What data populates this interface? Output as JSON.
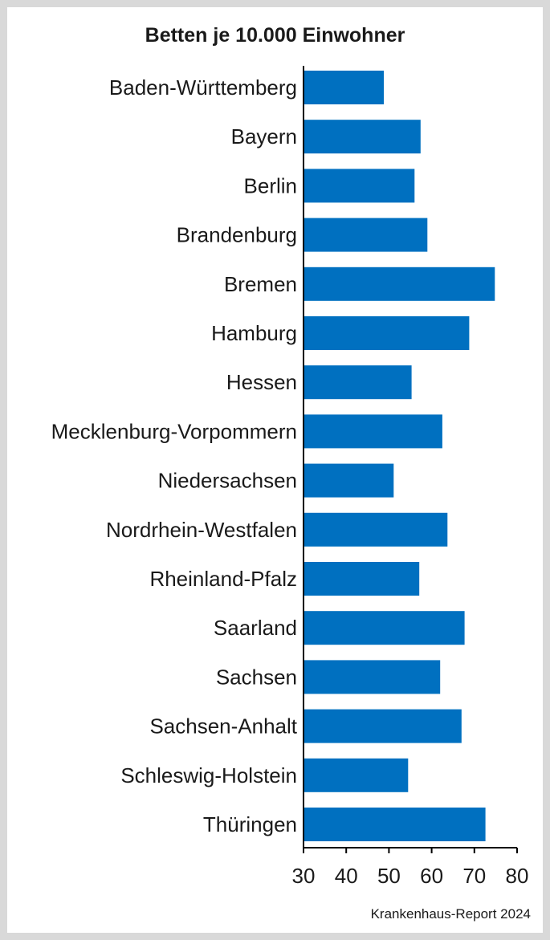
{
  "colors": {
    "bar": "#0070c0",
    "axis": "#000000",
    "text": "#1a1a1a",
    "frame": "#d9d9d9"
  },
  "source": "Krankenhaus-Report 2024",
  "chart_data": {
    "type": "bar",
    "orientation": "horizontal",
    "title": "Betten je 10.000 Einwohner",
    "xlabel": "",
    "ylabel": "",
    "xlim": [
      30,
      80
    ],
    "xticks": [
      30,
      40,
      50,
      60,
      70,
      80
    ],
    "grid": false,
    "legend": "none",
    "categories": [
      "Baden-Württemberg",
      "Bayern",
      "Berlin",
      "Brandenburg",
      "Bremen",
      "Hamburg",
      "Hessen",
      "Mecklenburg-Vorpommern",
      "Niedersachsen",
      "Nordrhein-Westfalen",
      "Rheinland-Pfalz",
      "Saarland",
      "Sachsen",
      "Sachsen-Anhalt",
      "Schleswig-Holstein",
      "Thüringen"
    ],
    "values": [
      48.8,
      57.4,
      56.0,
      59.0,
      74.8,
      68.8,
      55.3,
      62.5,
      51.1,
      63.7,
      57.1,
      67.7,
      62.0,
      67.0,
      54.5,
      72.6
    ]
  }
}
